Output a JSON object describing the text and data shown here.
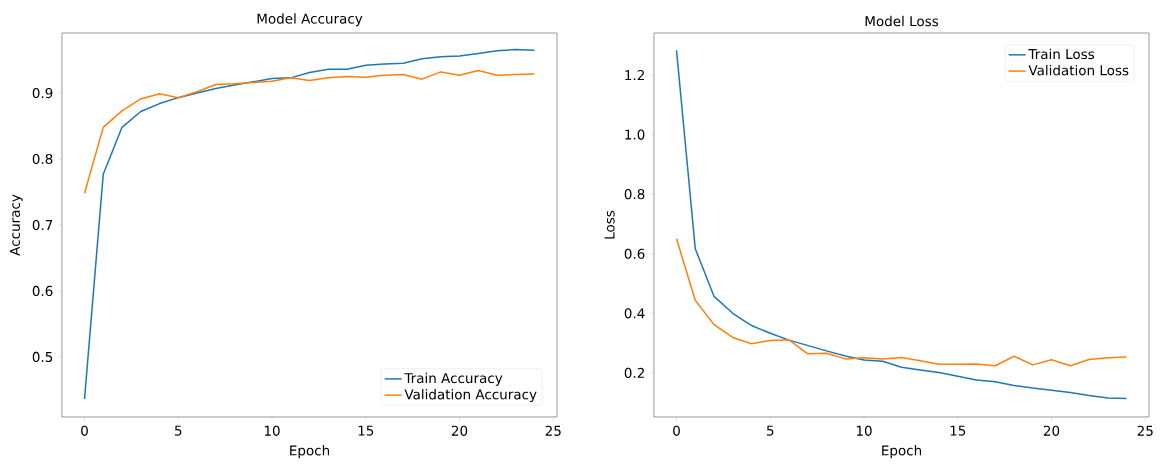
{
  "chart_data": [
    {
      "type": "line",
      "title": "Model Accuracy",
      "xlabel": "Epoch",
      "ylabel": "Accuracy",
      "x": [
        0,
        1,
        2,
        3,
        4,
        5,
        6,
        7,
        8,
        9,
        10,
        11,
        12,
        13,
        14,
        15,
        16,
        17,
        18,
        19,
        20,
        21,
        22,
        23,
        24
      ],
      "series": [
        {
          "name": "Train Accuracy",
          "color": "#1f77b4",
          "values": [
            0.436,
            0.777,
            0.848,
            0.872,
            0.884,
            0.893,
            0.9,
            0.907,
            0.912,
            0.917,
            0.922,
            0.923,
            0.931,
            0.936,
            0.936,
            0.942,
            0.944,
            0.945,
            0.952,
            0.955,
            0.956,
            0.96,
            0.964,
            0.966,
            0.965
          ]
        },
        {
          "name": "Validation Accuracy",
          "color": "#ff7f0e",
          "values": [
            0.748,
            0.848,
            0.873,
            0.891,
            0.899,
            0.893,
            0.902,
            0.913,
            0.914,
            0.916,
            0.918,
            0.923,
            0.919,
            0.923,
            0.925,
            0.924,
            0.927,
            0.928,
            0.921,
            0.932,
            0.927,
            0.934,
            0.927,
            0.928,
            0.929
          ]
        }
      ],
      "xlim": [
        -1.2,
        25.2
      ],
      "ylim": [
        0.409,
        0.991
      ],
      "xticks": [
        0,
        5,
        10,
        15,
        20,
        25
      ],
      "yticks": [
        0.5,
        0.6,
        0.7,
        0.8,
        0.9
      ],
      "legend": "bottom right"
    },
    {
      "type": "line",
      "title": "Model Loss",
      "xlabel": "Epoch",
      "ylabel": "Loss",
      "x": [
        0,
        1,
        2,
        3,
        4,
        5,
        6,
        7,
        8,
        9,
        10,
        11,
        12,
        13,
        14,
        15,
        16,
        17,
        18,
        19,
        20,
        21,
        22,
        23,
        24
      ],
      "series": [
        {
          "name": "Train Loss",
          "color": "#1f77b4",
          "values": [
            1.283,
            0.617,
            0.457,
            0.4,
            0.359,
            0.333,
            0.31,
            0.292,
            0.274,
            0.257,
            0.243,
            0.239,
            0.219,
            0.21,
            0.201,
            0.189,
            0.176,
            0.17,
            0.158,
            0.149,
            0.142,
            0.134,
            0.124,
            0.116,
            0.114
          ]
        },
        {
          "name": "Validation Loss",
          "color": "#ff7f0e",
          "values": [
            0.65,
            0.444,
            0.362,
            0.319,
            0.298,
            0.309,
            0.311,
            0.264,
            0.266,
            0.247,
            0.251,
            0.247,
            0.252,
            0.241,
            0.229,
            0.229,
            0.23,
            0.224,
            0.256,
            0.227,
            0.244,
            0.224,
            0.245,
            0.251,
            0.253
          ]
        }
      ],
      "xlim": [
        -1.2,
        25.2
      ],
      "ylim": [
        0.052,
        1.341
      ],
      "xticks": [
        0,
        5,
        10,
        15,
        20,
        25
      ],
      "yticks": [
        0.2,
        0.4,
        0.6,
        0.8,
        {
          "value": 1.0,
          "label": "1.0"
        },
        1.2
      ],
      "legend": "top right"
    }
  ]
}
